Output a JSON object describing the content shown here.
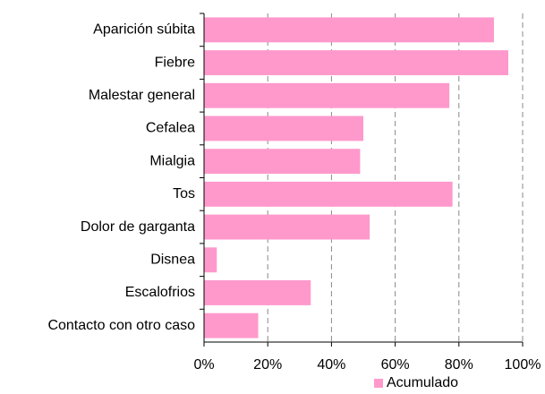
{
  "chart_data": {
    "type": "bar",
    "orientation": "horizontal",
    "categories": [
      "Aparición súbita",
      "Fiebre",
      "Malestar general",
      "Cefalea",
      "Mialgia",
      "Tos",
      "Dolor de garganta",
      "Disnea",
      "Escalofrios",
      "Contacto con otro caso"
    ],
    "series": [
      {
        "name": "Acumulado",
        "color": "#ff99cc",
        "values": [
          91,
          95.5,
          77,
          50,
          49,
          78,
          52,
          4,
          33.5,
          17
        ]
      }
    ],
    "xlim": [
      0,
      100
    ],
    "xticks": [
      {
        "value": 0,
        "label": "0%"
      },
      {
        "value": 20,
        "label": "20%"
      },
      {
        "value": 40,
        "label": "40%"
      },
      {
        "value": 60,
        "label": "60%"
      },
      {
        "value": 80,
        "label": "80%"
      },
      {
        "value": 100,
        "label": "100%"
      }
    ],
    "grid": true,
    "legend": "bottom"
  }
}
